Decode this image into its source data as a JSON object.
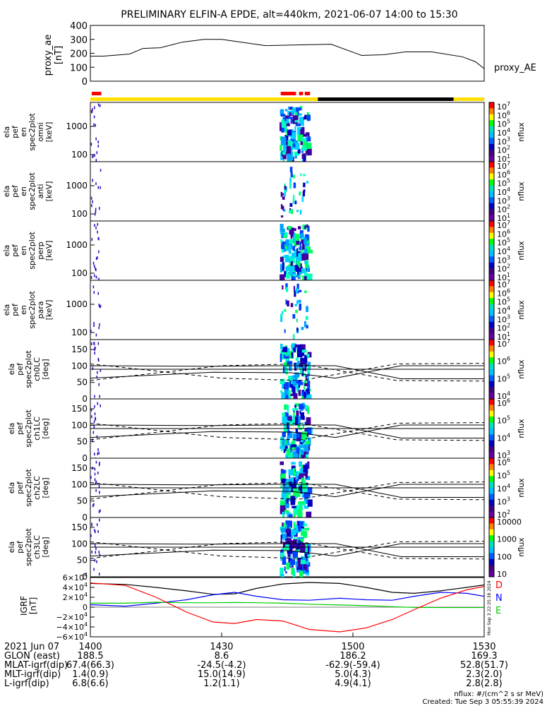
{
  "title": "PRELIMINARY ELFIN-A EPDE, alt=440km, 2021-06-07 14:00 to 15:30",
  "proxy": {
    "ylabel": [
      "proxy_ae",
      "[nT]"
    ],
    "yticks": [
      400,
      300,
      200,
      100,
      0
    ],
    "ylim": [
      0,
      400
    ],
    "legend": "proxy_AE",
    "series_x_min": [
      0,
      3,
      9,
      12,
      16,
      21,
      26,
      30,
      40,
      55,
      62,
      67,
      72,
      78,
      85,
      88,
      90
    ],
    "series_y_nT": [
      180,
      180,
      195,
      235,
      240,
      280,
      300,
      300,
      255,
      265,
      185,
      190,
      210,
      210,
      175,
      140,
      90
    ]
  },
  "status_bar": {
    "colors": {
      "science": "#ffe000",
      "dark": "#000000",
      "red": "#ff0000"
    },
    "dark_segment_min": [
      52,
      83
    ]
  },
  "spectrogram_panels": [
    {
      "label": [
        "ela",
        "pef",
        "en",
        "spec2plot",
        "omni",
        "[keV]"
      ],
      "yticks": [
        "1000",
        "100"
      ],
      "cbar_ticks": [
        "10^7",
        "10^6",
        "10^5",
        "10^4",
        "10^3",
        "10^2",
        "10^1"
      ],
      "cbar_label": "nflux"
    },
    {
      "label": [
        "ela",
        "pef",
        "en",
        "spec2plot",
        "anti",
        "[keV]"
      ],
      "yticks": [
        "1000",
        "100"
      ],
      "cbar_ticks": [
        "10^7",
        "10^6",
        "10^5",
        "10^4",
        "10^3",
        "10^2",
        "10^1"
      ],
      "cbar_label": "nflux"
    },
    {
      "label": [
        "ela",
        "pef",
        "en",
        "spec2plot",
        "perp",
        "[keV]"
      ],
      "yticks": [
        "1000",
        "100"
      ],
      "cbar_ticks": [
        "10^7",
        "10^6",
        "10^5",
        "10^4",
        "10^3",
        "10^2",
        "10^1"
      ],
      "cbar_label": "nflux"
    },
    {
      "label": [
        "ela",
        "pef",
        "en",
        "spec2plot",
        "para",
        "[keV]"
      ],
      "yticks": [
        "1000",
        "100"
      ],
      "cbar_ticks": [
        "10^7",
        "10^6",
        "10^5",
        "10^4",
        "10^3",
        "10^2",
        "10^1"
      ],
      "cbar_label": "nflux"
    }
  ],
  "pitch_panels": [
    {
      "label": [
        "ela",
        "pef",
        "spec2plot",
        "ch0LC",
        "[deg]"
      ],
      "yticks": [
        "150",
        "100",
        "50",
        "0"
      ],
      "cbar_ticks": [
        "10^7",
        "10^6",
        "10^5",
        "10^4"
      ],
      "cbar_label": "nflux"
    },
    {
      "label": [
        "ela",
        "pef",
        "spec2plot",
        "ch1LC",
        "[deg]"
      ],
      "yticks": [
        "150",
        "100",
        "50",
        "0"
      ],
      "cbar_ticks": [
        "10^6",
        "10^5",
        "10^4",
        "10^3"
      ],
      "cbar_label": "nflux"
    },
    {
      "label": [
        "ela",
        "pef",
        "spec2plot",
        "ch2LC",
        "[deg]"
      ],
      "yticks": [
        "150",
        "100",
        "50",
        "0"
      ],
      "cbar_ticks": [
        "10^6",
        "10^5",
        "10^4",
        "10^3",
        "10^2"
      ],
      "cbar_label": "nflux"
    },
    {
      "label": [
        "ela",
        "pef",
        "spec2plot",
        "ch3LC",
        "[deg]"
      ],
      "yticks": [
        "150",
        "100",
        "50",
        "0"
      ],
      "cbar_ticks": [
        "10000",
        "1000",
        "100",
        "10"
      ],
      "cbar_label": "nflux"
    }
  ],
  "igrf": {
    "ylabel": [
      "IGRF",
      "[nT]"
    ],
    "yticks": [
      "6×10^4",
      "4×10^4",
      "2×10^4",
      "0",
      "−2×10^4",
      "−4×10^4",
      "−6×10^4"
    ],
    "ylim": [
      -60000,
      60000
    ],
    "legend": [
      {
        "name": "D",
        "color": "#ff0000"
      },
      {
        "name": "N",
        "color": "#0000ff"
      },
      {
        "name": "E",
        "color": "#00cc00"
      }
    ],
    "side_text": "Mon Sep  3 22:35:38 2024",
    "series_x_min": [
      0,
      8,
      15,
      22,
      28,
      33,
      38,
      44,
      50,
      57,
      63,
      69,
      74,
      80,
      86,
      90
    ],
    "D_nT": [
      49000,
      44000,
      20000,
      -10000,
      -30000,
      -33000,
      -25000,
      -28000,
      -45000,
      -50000,
      -42000,
      -25000,
      -5000,
      18000,
      35000,
      42000
    ],
    "N_nT": [
      5000,
      2000,
      8000,
      15000,
      25000,
      30000,
      22000,
      15000,
      14000,
      18000,
      15000,
      14000,
      22000,
      30000,
      28000,
      22000
    ],
    "E_nT": [
      8000,
      8000,
      10000,
      9000,
      9000,
      9500,
      9000,
      8000,
      6000,
      4500,
      3000,
      1000,
      -500,
      -800,
      -800,
      -800
    ],
    "total_nT": [
      48000,
      46000,
      40000,
      33000,
      26000,
      27000,
      38000,
      47000,
      50000,
      48000,
      40000,
      30000,
      28000,
      33000,
      40000,
      45000
    ]
  },
  "xaxis": {
    "tick_labels": [
      "1400",
      "1430",
      "1500",
      "1530"
    ],
    "xlim_min": [
      0,
      90
    ],
    "date_label": "2021 Jun 07",
    "rows": [
      {
        "label": "GLON (east)",
        "values": [
          "188.5",
          "8.6",
          "186.2",
          "169.3"
        ]
      },
      {
        "label": "MLAT-igrf(dip)",
        "values": [
          "67.4(66.3)",
          "-24.5(-4.2)",
          "-62.9(-59.4)",
          "52.8(51.7)"
        ]
      },
      {
        "label": "MLT-igrf(dip)",
        "values": [
          "1.4(0.9)",
          "15.0(14.9)",
          "5.0(4.3)",
          "2.3(2.0)"
        ]
      },
      {
        "label": "L-igrf(dip)",
        "values": [
          "6.8(6.6)",
          "1.2(1.1)",
          "4.9(4.1)",
          "2.8(2.8)"
        ]
      }
    ]
  },
  "footer": {
    "units": "nflux: #/(cm^2 s sr MeV)",
    "created": "Created: Tue Sep  3 05:55:39 2024"
  }
}
